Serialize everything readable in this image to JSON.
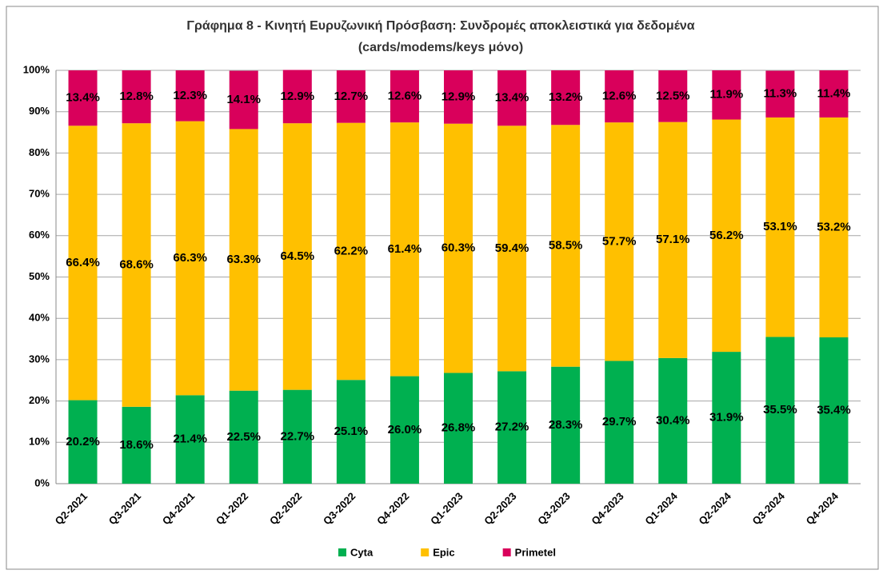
{
  "chart_data": {
    "type": "stacked_bar_percent",
    "title": "Γράφημα 8 - Κινητή Ευρυζωνική Πρόσβαση: Συνδρομές αποκλειστικά για δεδομένα",
    "subtitle": "(cards/modems/keys μόνο)",
    "categories": [
      "Q2-2021",
      "Q3-2021",
      "Q4-2021",
      "Q1-2022",
      "Q2-2022",
      "Q3-2022",
      "Q4-2022",
      "Q1-2023",
      "Q2-2023",
      "Q3-2023",
      "Q4-2023",
      "Q1-2024",
      "Q2-2024",
      "Q3-2024",
      "Q4-2024"
    ],
    "series": [
      {
        "name": "Cyta",
        "color": "#00b050",
        "values": [
          20.2,
          18.6,
          21.4,
          22.5,
          22.7,
          25.1,
          26.0,
          26.8,
          27.2,
          28.3,
          29.7,
          30.4,
          31.9,
          35.5,
          35.4
        ],
        "value_labels": [
          "20.2%",
          "18.6%",
          "21.4%",
          "22.5%",
          "22.7%",
          "25.1%",
          "26.0%",
          "26.8%",
          "27.2%",
          "28.3%",
          "29.7%",
          "30.4%",
          "31.9%",
          "35.5%",
          "35.4%"
        ]
      },
      {
        "name": "Epic",
        "color": "#ffc000",
        "values": [
          66.4,
          68.6,
          66.3,
          63.3,
          64.5,
          62.2,
          61.4,
          60.3,
          59.4,
          58.5,
          57.7,
          57.1,
          56.2,
          53.1,
          53.2
        ],
        "value_labels": [
          "66.4%",
          "68.6%",
          "66.3%",
          "63.3%",
          "64.5%",
          "62.2%",
          "61.4%",
          "60.3%",
          "59.4%",
          "58.5%",
          "57.7%",
          "57.1%",
          "56.2%",
          "53.1%",
          "53.2%"
        ]
      },
      {
        "name": "Primetel",
        "color": "#d9005b",
        "values": [
          13.4,
          12.8,
          12.3,
          14.1,
          12.9,
          12.7,
          12.6,
          12.9,
          13.4,
          13.2,
          12.6,
          12.5,
          11.9,
          11.3,
          11.4
        ],
        "value_labels": [
          "13.4%",
          "12.8%",
          "12.3%",
          "14.1%",
          "12.9%",
          "12.7%",
          "12.6%",
          "12.9%",
          "13.4%",
          "13.2%",
          "12.6%",
          "12.5%",
          "11.9%",
          "11.3%",
          "11.4%"
        ]
      }
    ],
    "ylim": [
      0,
      100
    ],
    "yticks": [
      {
        "value": 0,
        "label": "0%"
      },
      {
        "value": 10,
        "label": "10%"
      },
      {
        "value": 20,
        "label": "20%"
      },
      {
        "value": 30,
        "label": "30%"
      },
      {
        "value": 40,
        "label": "40%"
      },
      {
        "value": 50,
        "label": "50%"
      },
      {
        "value": 60,
        "label": "60%"
      },
      {
        "value": 70,
        "label": "70%"
      },
      {
        "value": 80,
        "label": "80%"
      },
      {
        "value": 90,
        "label": "90%"
      },
      {
        "value": 100,
        "label": "100%"
      }
    ],
    "grid": true,
    "legend": "bottom"
  }
}
